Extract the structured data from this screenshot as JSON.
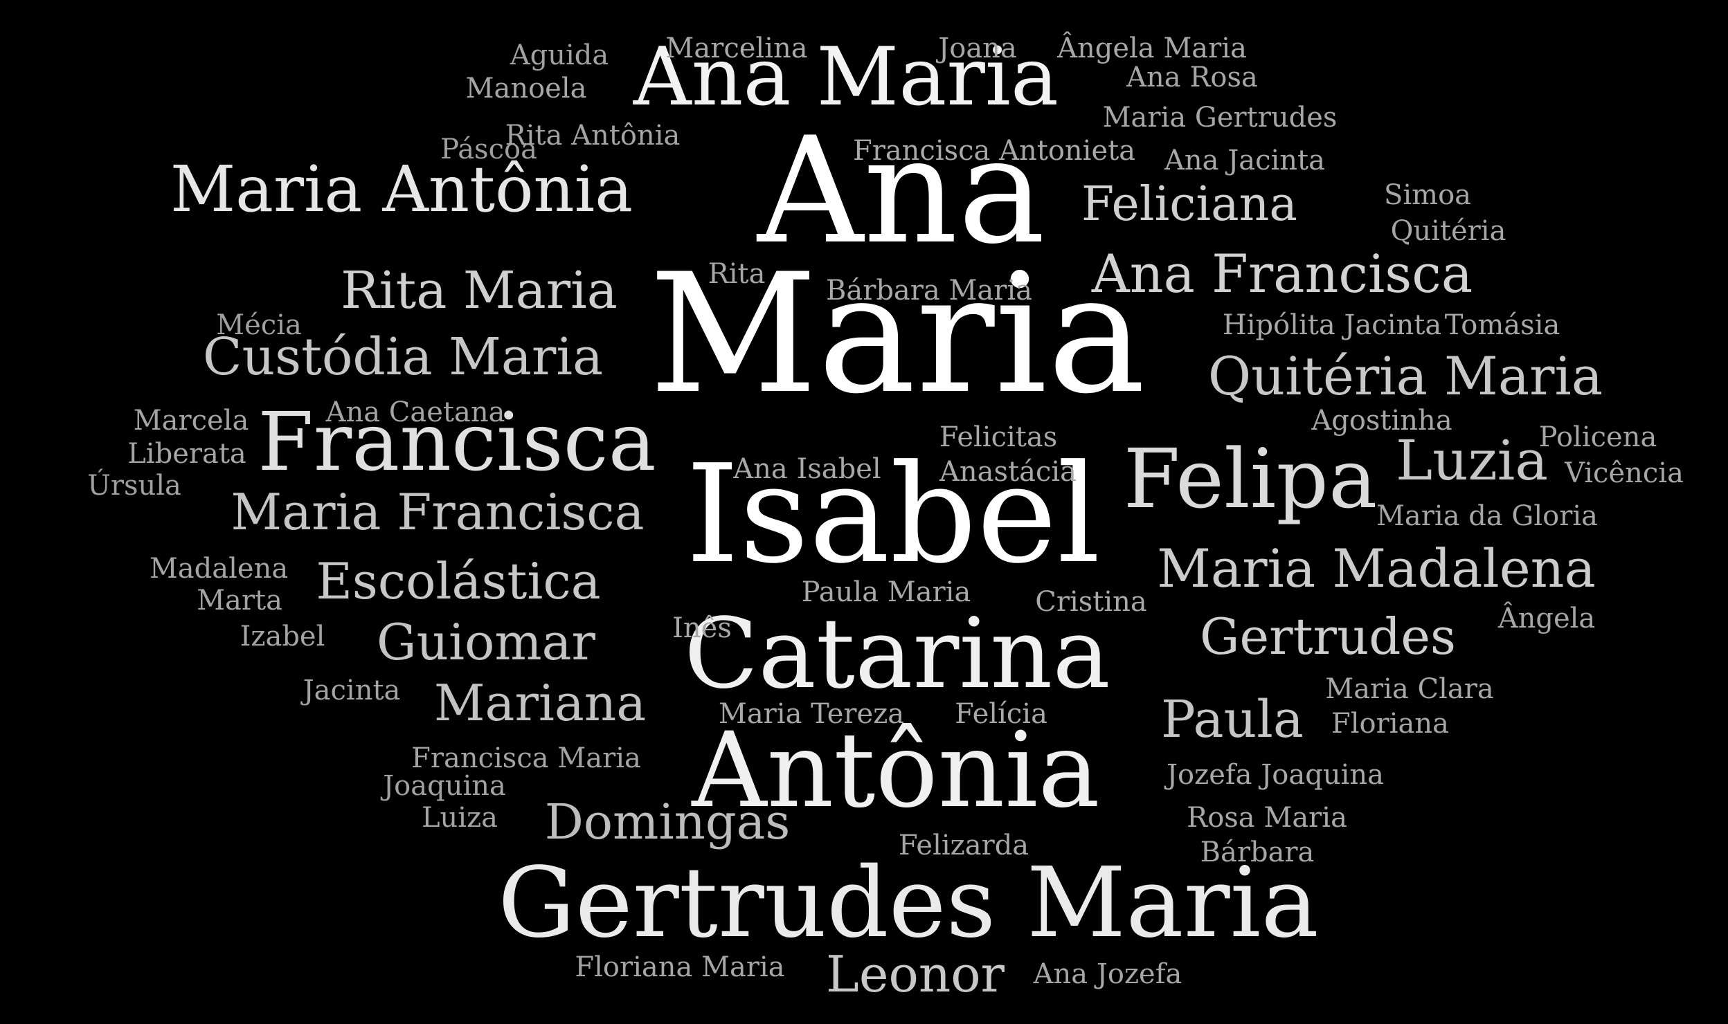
{
  "background_color": "#000000",
  "words": [
    {
      "text": "Maria",
      "color": "#ffffff"
    },
    {
      "text": "Isabel",
      "color": "#ffffff"
    },
    {
      "text": "Ana",
      "color": "#ffffff"
    },
    {
      "text": "Catarina",
      "color": "#f0f0f0"
    },
    {
      "text": "Antônia",
      "color": "#f0f0f0"
    },
    {
      "text": "Gertrudes Maria",
      "color": "#eaeaea"
    },
    {
      "text": "Ana Maria",
      "color": "#f2f2f2"
    },
    {
      "text": "Maria Antônia",
      "color": "#e6e6e6"
    },
    {
      "text": "Francisca",
      "color": "#e0e0e0"
    },
    {
      "text": "Felipa",
      "color": "#dadada"
    },
    {
      "text": "Maria Madalena",
      "color": "#cccccc"
    },
    {
      "text": "Gertrudes",
      "color": "#cfcfcf"
    },
    {
      "text": "Ana Francisca",
      "color": "#d2d2d2"
    },
    {
      "text": "Quitéria Maria",
      "color": "#c8c8c8"
    },
    {
      "text": "Feliciana",
      "color": "#cfcfcf"
    },
    {
      "text": "Rita Maria",
      "color": "#cfcfcf"
    },
    {
      "text": "Custódia Maria",
      "color": "#c6c6c6"
    },
    {
      "text": "Maria Francisca",
      "color": "#c4c4c4"
    },
    {
      "text": "Escolástica",
      "color": "#c8c8c8"
    },
    {
      "text": "Guiomar",
      "color": "#c4c4c4"
    },
    {
      "text": "Mariana",
      "color": "#c2c2c2"
    },
    {
      "text": "Domingas",
      "color": "#bdbdbd"
    },
    {
      "text": "Leonor",
      "color": "#c8c8c8"
    },
    {
      "text": "Paula",
      "color": "#c6c6c6"
    },
    {
      "text": "Luzia",
      "color": "#c6c6c6"
    },
    {
      "text": "Aguida",
      "color": "#a0a0a0"
    },
    {
      "text": "Marcelina",
      "color": "#a8a8a8"
    },
    {
      "text": "Joana",
      "color": "#a6a6a6"
    },
    {
      "text": "Ângela Maria",
      "color": "#a8a8a8"
    },
    {
      "text": "Manoela",
      "color": "#a6a6a6"
    },
    {
      "text": "Ana Rosa",
      "color": "#a6a6a6"
    },
    {
      "text": "Maria Gertrudes",
      "color": "#a6a6a6"
    },
    {
      "text": "Rita Antônia",
      "color": "#a4a4a4"
    },
    {
      "text": "Páscoa",
      "color": "#9e9e9e"
    },
    {
      "text": "Francisca Antonieta",
      "color": "#a8a8a8"
    },
    {
      "text": "Ana Jacinta",
      "color": "#a8a8a8"
    },
    {
      "text": "Simoa",
      "color": "#a6a6a6"
    },
    {
      "text": "Quitéria",
      "color": "#a6a6a6"
    },
    {
      "text": "Rita",
      "color": "#a6a6a6"
    },
    {
      "text": "Bárbara Maria",
      "color": "#a8a8a8"
    },
    {
      "text": "Mécia",
      "color": "#a0a0a0"
    },
    {
      "text": "Hipólita Jacinta",
      "color": "#a8a8a8"
    },
    {
      "text": "Tomásia",
      "color": "#a8a8a8"
    },
    {
      "text": "Marcela",
      "color": "#a4a4a4"
    },
    {
      "text": "Ana Caetana",
      "color": "#a4a4a4"
    },
    {
      "text": "Agostinha",
      "color": "#a8a8a8"
    },
    {
      "text": "Policena",
      "color": "#a6a6a6"
    },
    {
      "text": "Liberata",
      "color": "#a6a6a6"
    },
    {
      "text": "Felicitas",
      "color": "#a8a8a8"
    },
    {
      "text": "Úrsula",
      "color": "#a0a0a0"
    },
    {
      "text": "Ana Isabel",
      "color": "#a8a8a8"
    },
    {
      "text": "Anastácia",
      "color": "#a8a8a8"
    },
    {
      "text": "Vicência",
      "color": "#a6a6a6"
    },
    {
      "text": "Maria da Gloria",
      "color": "#a6a6a6"
    },
    {
      "text": "Madalena",
      "color": "#a4a4a4"
    },
    {
      "text": "Marta",
      "color": "#a4a4a4"
    },
    {
      "text": "Paula Maria",
      "color": "#a8a8a8"
    },
    {
      "text": "Cristina",
      "color": "#a8a8a8"
    },
    {
      "text": "Ângela",
      "color": "#a6a6a6"
    },
    {
      "text": "Izabel",
      "color": "#a4a4a4"
    },
    {
      "text": "Inês",
      "color": "#a8a8a8"
    },
    {
      "text": "Jacinta",
      "color": "#a4a4a4"
    },
    {
      "text": "Maria Clara",
      "color": "#a8a8a8"
    },
    {
      "text": "Maria Tereza",
      "color": "#a8a8a8"
    },
    {
      "text": "Felícia",
      "color": "#a8a8a8"
    },
    {
      "text": "Floriana",
      "color": "#a6a6a6"
    },
    {
      "text": "Francisca Maria",
      "color": "#a4a4a4"
    },
    {
      "text": "Joaquina",
      "color": "#a2a2a2"
    },
    {
      "text": "Jozefa Joaquina",
      "color": "#a8a8a8"
    },
    {
      "text": "Luiza",
      "color": "#a4a4a4"
    },
    {
      "text": "Rosa Maria",
      "color": "#a8a8a8"
    },
    {
      "text": "Felizarda",
      "color": "#a6a6a6"
    },
    {
      "text": "Bárbara",
      "color": "#a6a6a6"
    },
    {
      "text": "Floriana Maria",
      "color": "#a6a6a6"
    },
    {
      "text": "Ana Jozefa",
      "color": "#a6a6a6"
    }
  ]
}
